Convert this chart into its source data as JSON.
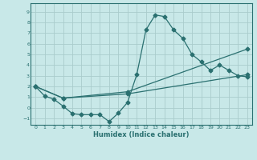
{
  "xlabel": "Humidex (Indice chaleur)",
  "ylabel": "",
  "background_color": "#c8e8e8",
  "grid_color": "#aacccc",
  "line_color": "#2a7070",
  "xlim": [
    -0.5,
    23.5
  ],
  "ylim": [
    -1.6,
    9.8
  ],
  "xticks": [
    0,
    1,
    2,
    3,
    4,
    5,
    6,
    7,
    8,
    9,
    10,
    11,
    12,
    13,
    14,
    15,
    16,
    17,
    18,
    19,
    20,
    21,
    22,
    23
  ],
  "yticks": [
    -1,
    0,
    1,
    2,
    3,
    4,
    5,
    6,
    7,
    8,
    9
  ],
  "line1_x": [
    0,
    1,
    2,
    3,
    4,
    5,
    6,
    7,
    8,
    9,
    10,
    11,
    12,
    13,
    14,
    15,
    16,
    17,
    18,
    19,
    20,
    21,
    22,
    23
  ],
  "line1_y": [
    2.0,
    1.1,
    0.8,
    0.15,
    -0.55,
    -0.65,
    -0.65,
    -0.65,
    -1.3,
    -0.5,
    0.5,
    3.1,
    7.3,
    8.7,
    8.55,
    7.3,
    6.5,
    5.0,
    4.3,
    3.5,
    4.0,
    3.5,
    3.0,
    2.9
  ],
  "line2_x": [
    0,
    3,
    10,
    23
  ],
  "line2_y": [
    2.0,
    0.9,
    1.3,
    3.1
  ],
  "line3_x": [
    0,
    3,
    10,
    23
  ],
  "line3_y": [
    2.0,
    0.9,
    1.5,
    5.5
  ]
}
